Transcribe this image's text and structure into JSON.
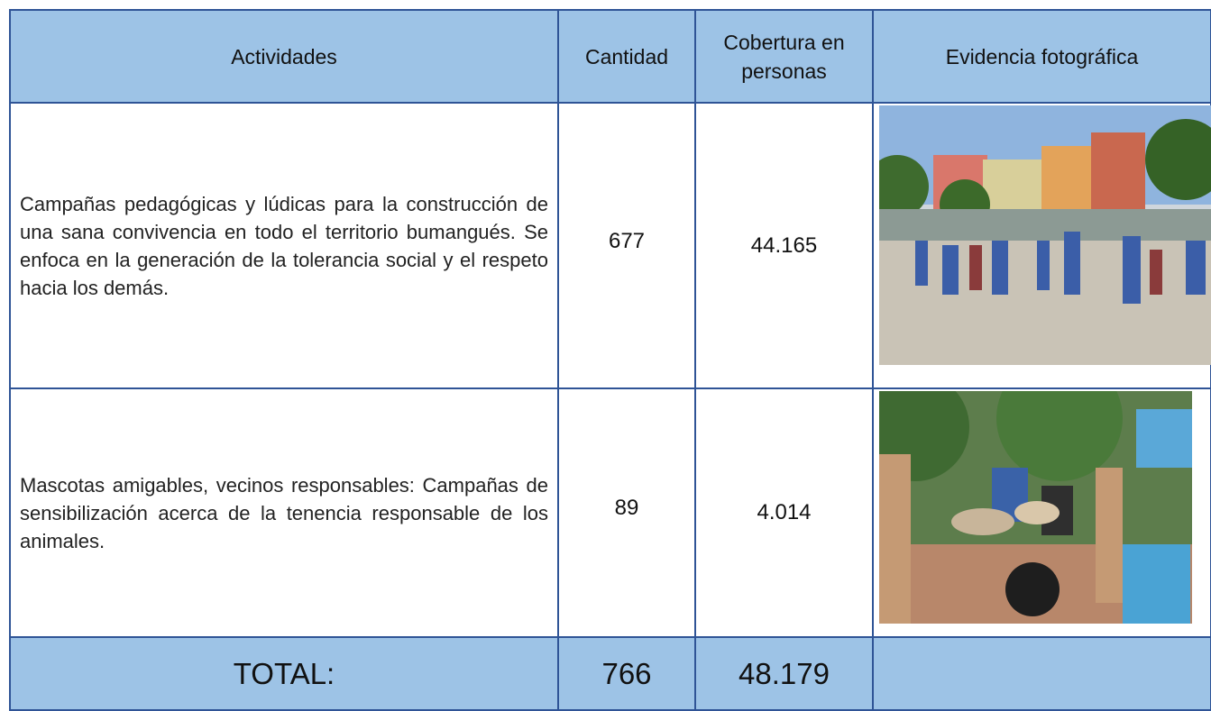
{
  "table": {
    "headers": [
      "Actividades",
      "Cantidad",
      "Cobertura en personas",
      "Evidencia fotográfica"
    ],
    "rows": [
      [
        "Campañas pedagógicas y lúdicas para la construcción de una sana convivencia en todo el territorio bumangués. Se enfoca en la generación de la tolerancia social y el respeto hacia los demás.",
        "677",
        "44.165"
      ],
      [
        "Mascotas amigables, vecinos responsables: Campañas de sensibilización acerca de la tenencia responsable de los animales.",
        "89",
        "4.014"
      ]
    ],
    "total": [
      "TOTAL:",
      "766",
      "48.179"
    ]
  }
}
